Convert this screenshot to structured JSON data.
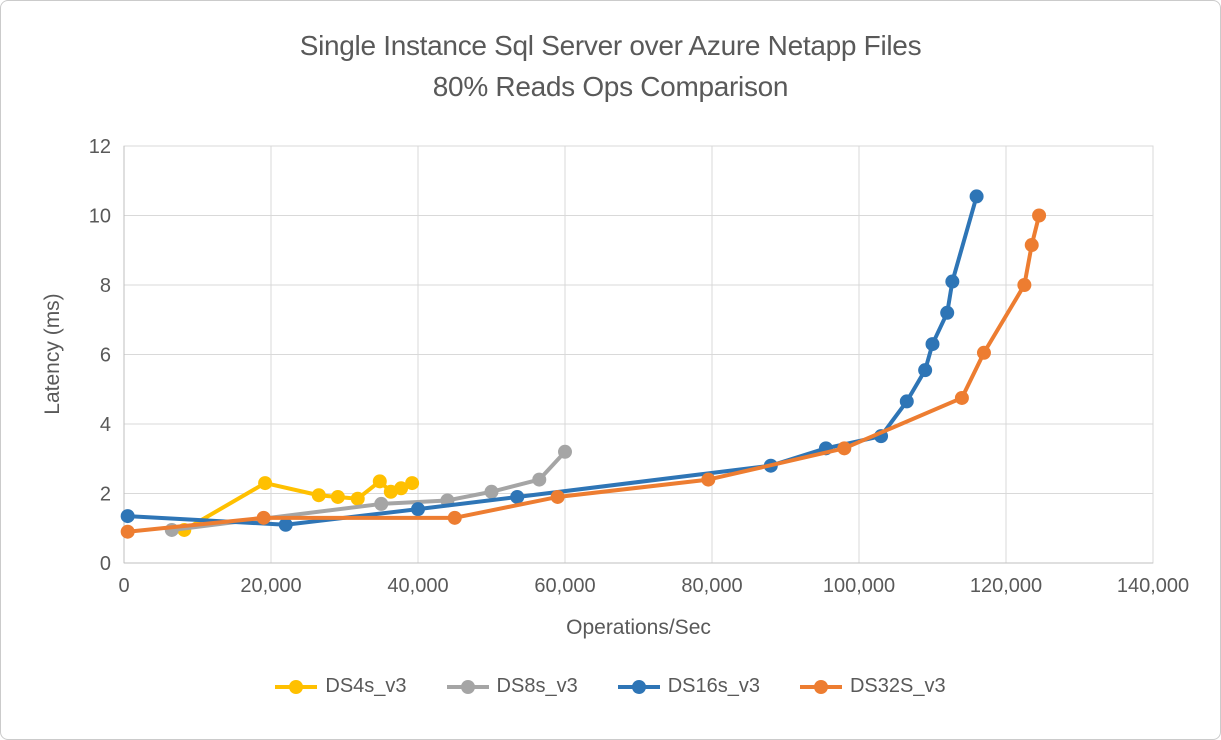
{
  "title": {
    "line1": "Single Instance Sql Server over Azure Netapp Files",
    "line2": "80% Reads Ops Comparison"
  },
  "axes": {
    "x_label": "Operations/Sec",
    "y_label": "Latency (ms)"
  },
  "colors": {
    "text": "#595959",
    "gridline": "#d9d9d9",
    "axis_line": "#bfbfbf",
    "frame_border": "#cbcbcb"
  },
  "chart_data": {
    "type": "line",
    "title": "Single Instance Sql Server over Azure Netapp Files 80% Reads Ops Comparison",
    "xlabel": "Operations/Sec",
    "ylabel": "Latency (ms)",
    "xlim": [
      0,
      140000
    ],
    "ylim": [
      0,
      12
    ],
    "grid": true,
    "legend_position": "bottom",
    "x_ticks": [
      0,
      20000,
      40000,
      60000,
      80000,
      100000,
      120000,
      140000
    ],
    "x_tick_labels": [
      "0",
      "20,000",
      "40,000",
      "60,000",
      "80,000",
      "100,000",
      "120,000",
      "140,000"
    ],
    "y_ticks": [
      0,
      2,
      4,
      6,
      8,
      10,
      12
    ],
    "y_tick_labels": [
      "0",
      "2",
      "4",
      "6",
      "8",
      "10",
      "12"
    ],
    "series": [
      {
        "name": "DS4s_v3",
        "color": "#FFC000",
        "points": [
          [
            8200,
            0.95
          ],
          [
            19200,
            2.3
          ],
          [
            26500,
            1.95
          ],
          [
            29100,
            1.9
          ],
          [
            31800,
            1.85
          ],
          [
            34800,
            2.35
          ],
          [
            36300,
            2.05
          ],
          [
            37700,
            2.15
          ],
          [
            39200,
            2.3
          ]
        ]
      },
      {
        "name": "DS8s_v3",
        "color": "#A5A5A5",
        "points": [
          [
            6500,
            0.95
          ],
          [
            35000,
            1.7
          ],
          [
            44000,
            1.8
          ],
          [
            50000,
            2.05
          ],
          [
            56500,
            2.4
          ],
          [
            60000,
            3.2
          ]
        ]
      },
      {
        "name": "DS16s_v3",
        "color": "#2E75B6",
        "points": [
          [
            500,
            1.35
          ],
          [
            22000,
            1.1
          ],
          [
            40000,
            1.55
          ],
          [
            53500,
            1.9
          ],
          [
            88000,
            2.8
          ],
          [
            95500,
            3.3
          ],
          [
            103000,
            3.65
          ],
          [
            106500,
            4.65
          ],
          [
            109000,
            5.55
          ],
          [
            110000,
            6.3
          ],
          [
            112000,
            7.2
          ],
          [
            112700,
            8.1
          ],
          [
            116000,
            10.55
          ]
        ]
      },
      {
        "name": "DS32S_v3",
        "color": "#ED7D31",
        "points": [
          [
            500,
            0.9
          ],
          [
            19000,
            1.3
          ],
          [
            45000,
            1.3
          ],
          [
            59000,
            1.9
          ],
          [
            79500,
            2.4
          ],
          [
            98000,
            3.3
          ],
          [
            114000,
            4.75
          ],
          [
            117000,
            6.05
          ],
          [
            122500,
            8.0
          ],
          [
            123500,
            9.15
          ],
          [
            124500,
            10.0
          ]
        ]
      }
    ]
  }
}
